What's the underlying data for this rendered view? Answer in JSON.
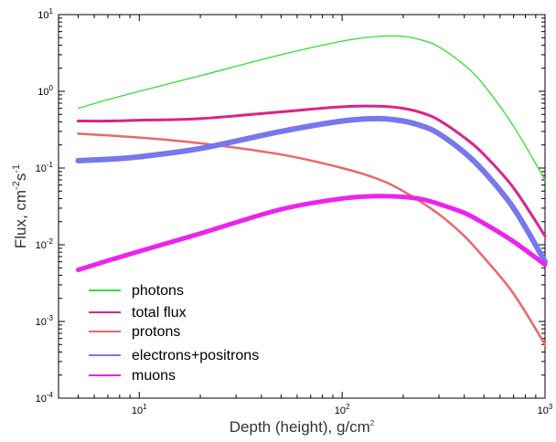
{
  "chart_data": {
    "type": "line",
    "xscale": "log",
    "yscale": "log",
    "xlim": [
      4,
      1000
    ],
    "ylim": [
      0.0001,
      10
    ],
    "xlabel": "Depth (height), g/cm",
    "xlabel_sup": "2",
    "ylabel_main": "Flux, cm",
    "ylabel_sup1": "-2",
    "ylabel_mid": "s",
    "ylabel_sup2": "-1",
    "x_ticks": [
      {
        "value": 10,
        "base": "10",
        "exp": "1"
      },
      {
        "value": 100,
        "base": "10",
        "exp": "2"
      },
      {
        "value": 1000,
        "base": "10",
        "exp": "3"
      }
    ],
    "y_ticks": [
      {
        "value": 10,
        "base": "10",
        "exp": "1"
      },
      {
        "value": 1,
        "base": "10",
        "exp": "0"
      },
      {
        "value": 0.1,
        "base": "10",
        "exp": "-1"
      },
      {
        "value": 0.01,
        "base": "10",
        "exp": "-2"
      },
      {
        "value": 0.001,
        "base": "10",
        "exp": "-3"
      },
      {
        "value": 0.0001,
        "base": "10",
        "exp": "-4"
      }
    ],
    "legend_position": "bottom-left",
    "series": [
      {
        "name": "photons",
        "color": "#33dd33",
        "x": [
          5,
          7,
          10,
          20,
          50,
          100,
          150,
          200,
          250,
          300,
          400,
          500,
          700,
          1000
        ],
        "y": [
          0.6,
          0.78,
          1.0,
          1.6,
          3.0,
          4.5,
          5.2,
          5.2,
          4.6,
          3.8,
          2.2,
          1.2,
          0.35,
          0.07
        ],
        "width": 1.3
      },
      {
        "name": "total flux",
        "color": "#dd2288",
        "x": [
          5,
          7,
          10,
          20,
          50,
          100,
          150,
          200,
          250,
          300,
          400,
          500,
          700,
          1000
        ],
        "y": [
          0.41,
          0.41,
          0.42,
          0.44,
          0.54,
          0.63,
          0.64,
          0.6,
          0.52,
          0.42,
          0.25,
          0.15,
          0.055,
          0.013
        ],
        "width": 3
      },
      {
        "name": "protons",
        "color": "#ee6666",
        "x": [
          5,
          10,
          20,
          50,
          100,
          150,
          200,
          300,
          400,
          500,
          700,
          1000
        ],
        "y": [
          0.28,
          0.25,
          0.21,
          0.15,
          0.1,
          0.072,
          0.05,
          0.025,
          0.013,
          0.0068,
          0.0023,
          0.0005
        ],
        "width": 2.5
      },
      {
        "name": "electrons+positrons",
        "color": "#7777ee",
        "x": [
          5,
          7,
          10,
          20,
          50,
          100,
          150,
          200,
          250,
          300,
          400,
          500,
          700,
          1000
        ],
        "y": [
          0.125,
          0.13,
          0.14,
          0.18,
          0.3,
          0.41,
          0.44,
          0.41,
          0.35,
          0.28,
          0.16,
          0.09,
          0.03,
          0.006
        ],
        "width": 6
      },
      {
        "name": "muons",
        "color": "#ee22ee",
        "x": [
          5,
          7,
          10,
          20,
          50,
          100,
          150,
          200,
          250,
          300,
          400,
          500,
          700,
          1000
        ],
        "y": [
          0.0047,
          0.0062,
          0.0082,
          0.014,
          0.029,
          0.04,
          0.043,
          0.042,
          0.039,
          0.034,
          0.026,
          0.019,
          0.011,
          0.0055
        ],
        "width": 5
      }
    ]
  }
}
